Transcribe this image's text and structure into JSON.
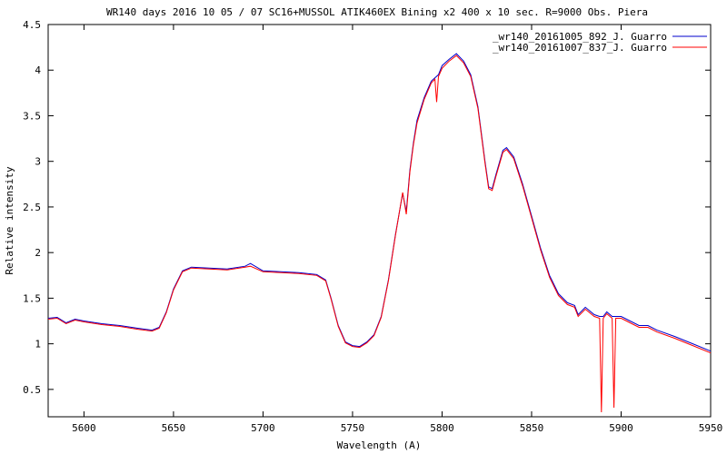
{
  "chart_data": {
    "type": "line",
    "title": "WR140  days  2016 10 05 / 07 SC16+MUSSOL   ATIK460EX Bining x2  400 x 10 sec.  R=9000 Obs. Piera",
    "xlabel": "Wavelength (A)",
    "ylabel": "Relative intensity",
    "xlim": [
      5580,
      5950
    ],
    "ylim": [
      0.2,
      4.5
    ],
    "xticks": [
      5600,
      5650,
      5700,
      5750,
      5800,
      5850,
      5900,
      5950
    ],
    "yticks": [
      0.5,
      1,
      1.5,
      2,
      2.5,
      3,
      3.5,
      4,
      4.5
    ],
    "legend_position": "top-right",
    "grid": false,
    "series": [
      {
        "name": "_wr140_20161005_892_J. Guarro",
        "color": "#0000cc",
        "x": [
          5580,
          5585,
          5590,
          5595,
          5600,
          5610,
          5620,
          5630,
          5638,
          5642,
          5646,
          5650,
          5655,
          5660,
          5670,
          5680,
          5690,
          5693,
          5700,
          5710,
          5720,
          5730,
          5735,
          5738,
          5742,
          5746,
          5750,
          5754,
          5758,
          5762,
          5766,
          5770,
          5774,
          5778,
          5780,
          5782,
          5784,
          5786,
          5790,
          5794,
          5798,
          5800,
          5804,
          5808,
          5812,
          5816,
          5820,
          5824,
          5826,
          5828,
          5830,
          5834,
          5836,
          5840,
          5845,
          5850,
          5855,
          5860,
          5865,
          5870,
          5874,
          5876,
          5880,
          5885,
          5888,
          5890,
          5892,
          5895,
          5897,
          5900,
          5905,
          5910,
          5915,
          5920,
          5930,
          5940,
          5950
        ],
        "y": [
          1.28,
          1.29,
          1.23,
          1.27,
          1.25,
          1.22,
          1.2,
          1.17,
          1.15,
          1.18,
          1.35,
          1.6,
          1.8,
          1.84,
          1.83,
          1.82,
          1.85,
          1.88,
          1.8,
          1.79,
          1.78,
          1.76,
          1.7,
          1.5,
          1.2,
          1.02,
          0.98,
          0.97,
          1.02,
          1.1,
          1.3,
          1.7,
          2.2,
          2.65,
          2.45,
          2.9,
          3.2,
          3.45,
          3.7,
          3.88,
          3.95,
          4.05,
          4.12,
          4.18,
          4.1,
          3.95,
          3.6,
          3.0,
          2.72,
          2.7,
          2.85,
          3.12,
          3.15,
          3.05,
          2.75,
          2.4,
          2.05,
          1.75,
          1.55,
          1.45,
          1.42,
          1.32,
          1.4,
          1.32,
          1.3,
          1.3,
          1.35,
          1.3,
          1.3,
          1.3,
          1.25,
          1.2,
          1.2,
          1.15,
          1.08,
          1.0,
          0.92
        ]
      },
      {
        "name": "_wr140_20161007_837_J. Guarro",
        "color": "#ff0000",
        "x": [
          5580,
          5585,
          5590,
          5595,
          5600,
          5610,
          5620,
          5630,
          5638,
          5642,
          5646,
          5650,
          5655,
          5660,
          5670,
          5680,
          5690,
          5693,
          5700,
          5710,
          5720,
          5730,
          5735,
          5738,
          5742,
          5746,
          5750,
          5754,
          5758,
          5762,
          5766,
          5770,
          5774,
          5778,
          5780,
          5782,
          5784,
          5786,
          5790,
          5794,
          5796,
          5797,
          5798,
          5800,
          5804,
          5808,
          5812,
          5816,
          5820,
          5824,
          5826,
          5828,
          5830,
          5834,
          5836,
          5840,
          5845,
          5850,
          5855,
          5860,
          5865,
          5870,
          5874,
          5876,
          5880,
          5885,
          5888,
          5889,
          5890,
          5892,
          5895,
          5896,
          5897,
          5900,
          5905,
          5910,
          5915,
          5920,
          5930,
          5940,
          5950
        ],
        "y": [
          1.27,
          1.28,
          1.22,
          1.26,
          1.24,
          1.21,
          1.19,
          1.16,
          1.14,
          1.17,
          1.34,
          1.59,
          1.79,
          1.83,
          1.82,
          1.81,
          1.84,
          1.85,
          1.79,
          1.78,
          1.77,
          1.75,
          1.69,
          1.49,
          1.19,
          1.01,
          0.97,
          0.96,
          1.01,
          1.09,
          1.29,
          1.69,
          2.19,
          2.66,
          2.42,
          2.88,
          3.18,
          3.42,
          3.68,
          3.86,
          3.9,
          3.65,
          3.93,
          4.02,
          4.1,
          4.16,
          4.08,
          3.93,
          3.58,
          2.98,
          2.7,
          2.68,
          2.83,
          3.1,
          3.13,
          3.03,
          2.73,
          2.38,
          2.03,
          1.73,
          1.53,
          1.43,
          1.4,
          1.3,
          1.38,
          1.3,
          1.28,
          0.25,
          1.28,
          1.33,
          1.28,
          0.3,
          1.28,
          1.28,
          1.23,
          1.18,
          1.18,
          1.13,
          1.06,
          0.98,
          0.9
        ]
      }
    ]
  }
}
